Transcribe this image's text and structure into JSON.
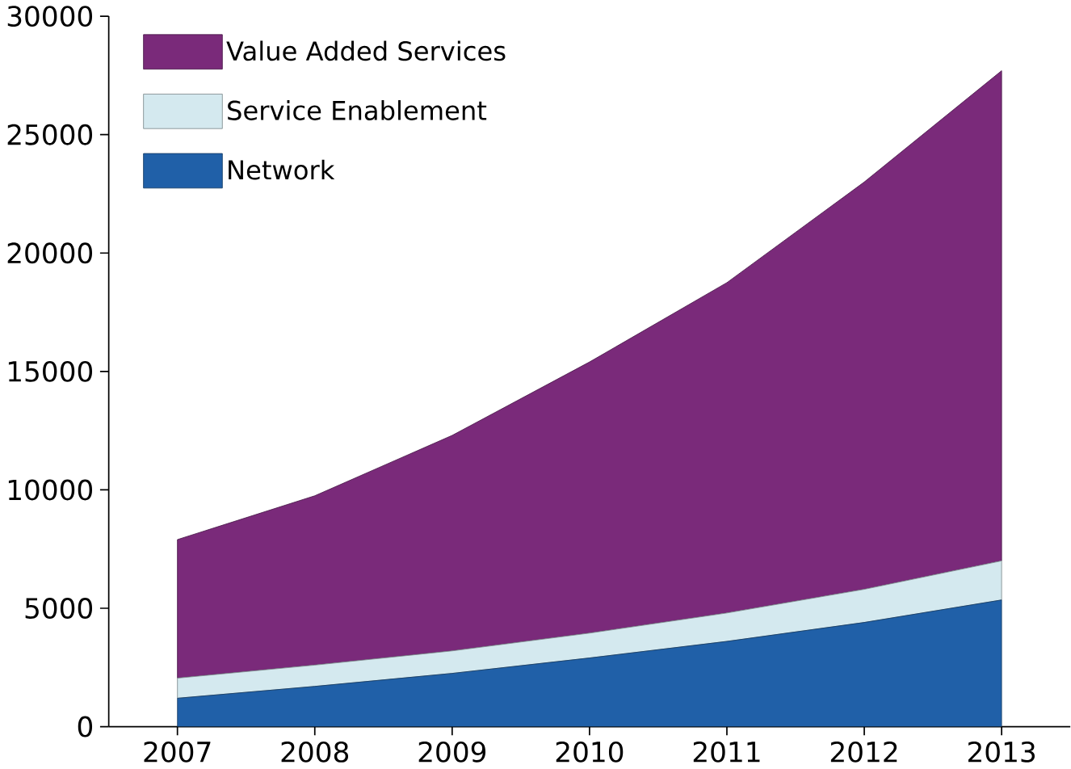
{
  "chart_data": {
    "type": "area",
    "stacked": true,
    "categories": [
      "2007",
      "2008",
      "2009",
      "2010",
      "2011",
      "2012",
      "2013"
    ],
    "ylim": [
      0,
      30000
    ],
    "yticks": [
      0,
      5000,
      10000,
      15000,
      20000,
      25000,
      30000
    ],
    "legend": "top left",
    "grid": false,
    "series": [
      {
        "name": "Network",
        "color": "#2060a8",
        "values": [
          1200,
          1700,
          2250,
          2900,
          3600,
          4400,
          5350
        ]
      },
      {
        "name": "Service Enablement",
        "color": "#d4e9ef",
        "values": [
          850,
          900,
          950,
          1050,
          1200,
          1400,
          1650
        ]
      },
      {
        "name": "Value Added Services",
        "color": "#7a2a7a",
        "values": [
          5850,
          7150,
          9100,
          11450,
          13950,
          17200,
          20700
        ]
      }
    ]
  }
}
